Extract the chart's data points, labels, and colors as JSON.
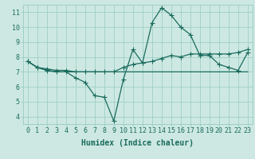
{
  "xlabel": "Humidex (Indice chaleur)",
  "background_color": "#cde8e2",
  "grid_color": "#9ecfc6",
  "line_color": "#1a6b5e",
  "x_values": [
    0,
    1,
    2,
    3,
    4,
    5,
    6,
    7,
    8,
    9,
    10,
    11,
    12,
    13,
    14,
    15,
    16,
    17,
    18,
    19,
    20,
    21,
    22,
    23
  ],
  "main_line": [
    7.7,
    7.3,
    7.1,
    7.0,
    7.0,
    6.6,
    6.3,
    5.4,
    5.3,
    3.7,
    6.5,
    8.5,
    7.6,
    10.3,
    11.3,
    10.8,
    10.0,
    9.5,
    8.1,
    8.1,
    7.5,
    7.3,
    7.1,
    8.3
  ],
  "upper_line": [
    7.7,
    7.3,
    7.2,
    7.1,
    7.1,
    7.0,
    7.0,
    7.0,
    7.0,
    7.0,
    7.3,
    7.5,
    7.6,
    7.7,
    7.9,
    8.1,
    8.0,
    8.2,
    8.2,
    8.2,
    8.2,
    8.2,
    8.3,
    8.5
  ],
  "lower_line": [
    7.7,
    7.3,
    7.1,
    7.0,
    7.0,
    7.0,
    7.0,
    7.0,
    7.0,
    7.0,
    7.0,
    7.0,
    7.0,
    7.0,
    7.0,
    7.0,
    7.0,
    7.0,
    7.0,
    7.0,
    7.0,
    7.0,
    7.0,
    7.0
  ],
  "ylim": [
    3.5,
    11.5
  ],
  "yticks": [
    4,
    5,
    6,
    7,
    8,
    9,
    10,
    11
  ],
  "xticks": [
    0,
    1,
    2,
    3,
    4,
    5,
    6,
    7,
    8,
    9,
    10,
    11,
    12,
    13,
    14,
    15,
    16,
    17,
    18,
    19,
    20,
    21,
    22,
    23
  ],
  "markersize": 4,
  "linewidth": 0.9,
  "xlabel_fontsize": 7,
  "tick_fontsize": 6
}
